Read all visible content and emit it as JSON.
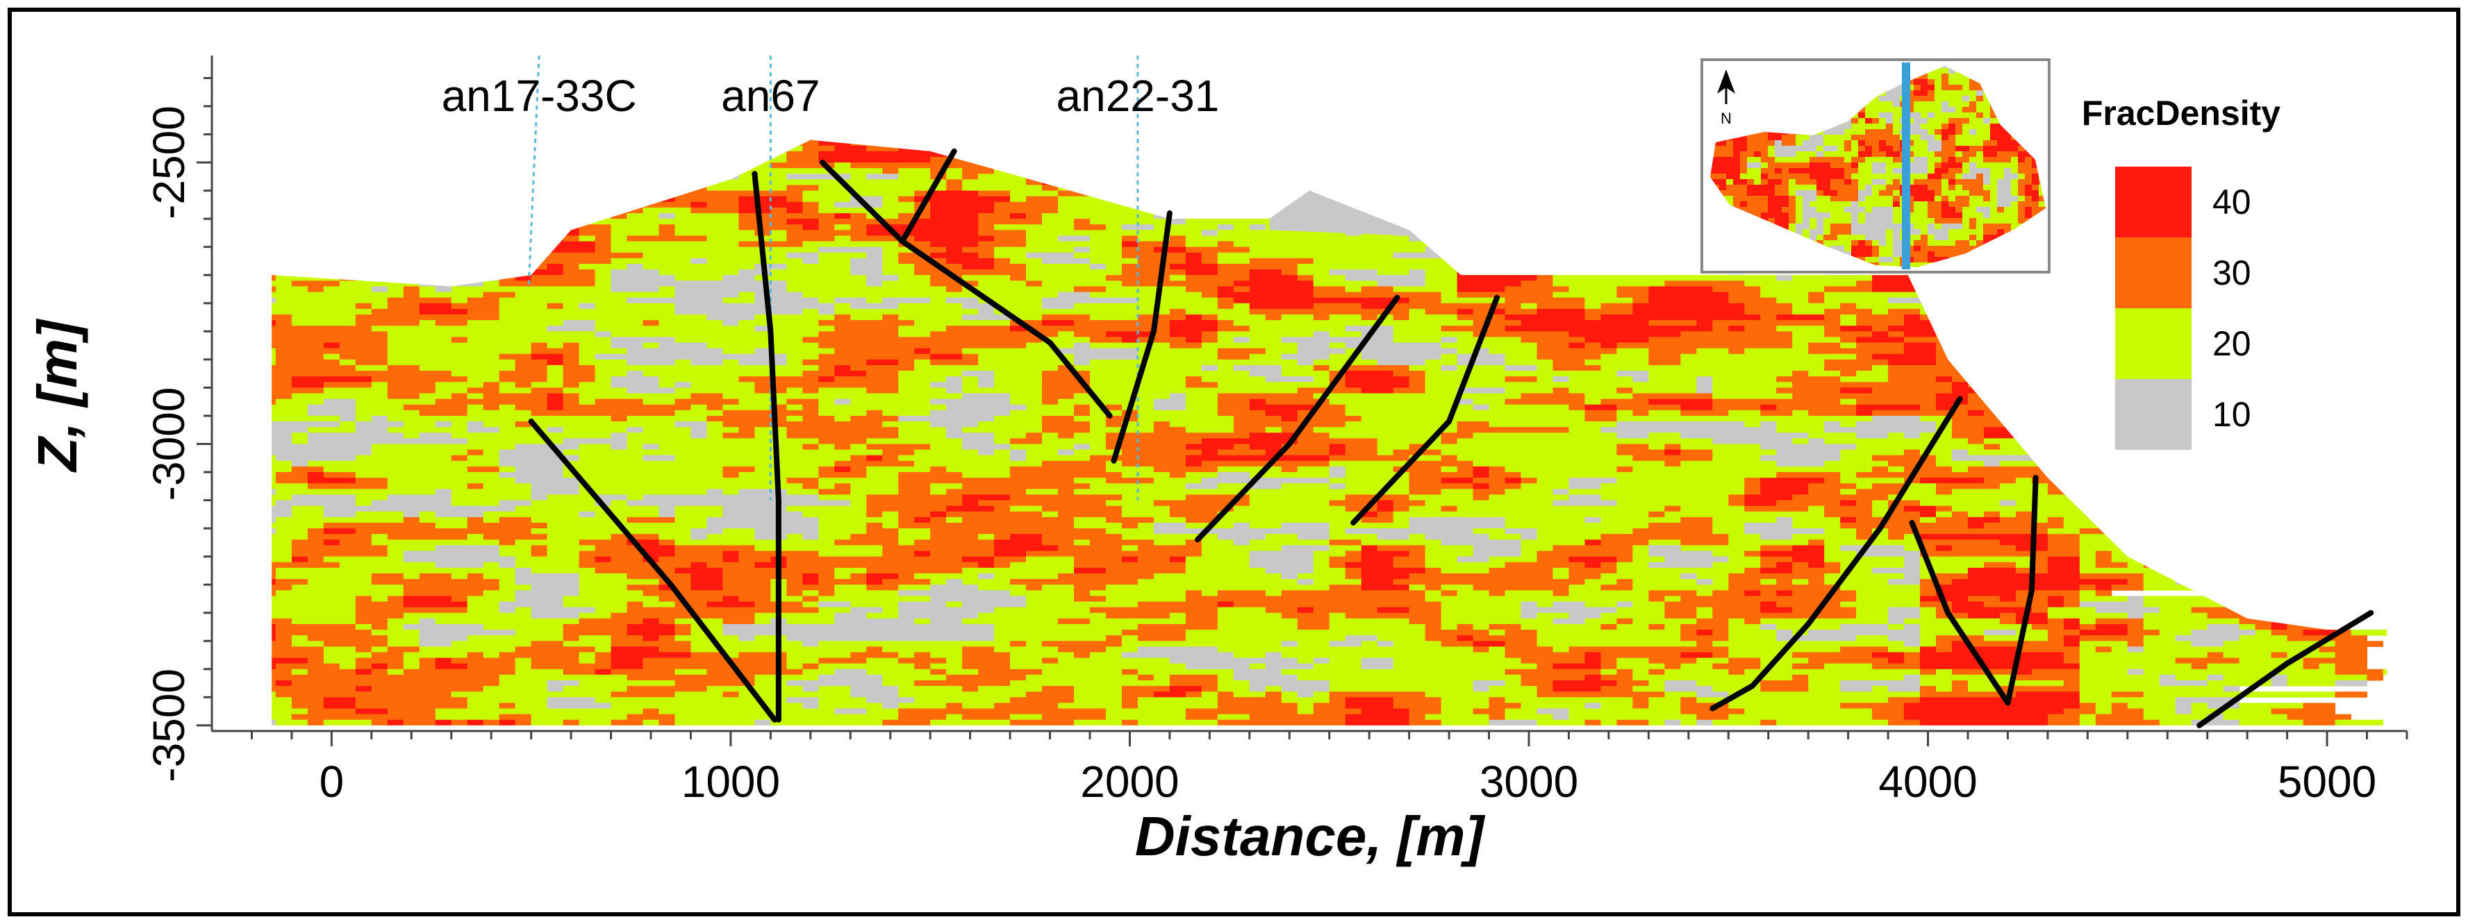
{
  "chart_data": {
    "type": "heatmap",
    "title": "",
    "xlabel": "Distance, [m]",
    "ylabel": "Z, [m]",
    "xlim": [
      -300,
      5200
    ],
    "ylim": [
      -3510,
      -2310
    ],
    "x_ticks": [
      0,
      1000,
      2000,
      3000,
      4000,
      5000
    ],
    "x_tick_labels": [
      "0",
      "1000",
      "2000",
      "3000",
      "4000",
      "5000"
    ],
    "x_minor_step": 100,
    "y_ticks": [
      -2500,
      -3000,
      -3500
    ],
    "y_tick_labels": [
      "-2500",
      "-3000",
      "-3500"
    ],
    "y_minor_step": 50,
    "grid": false,
    "legend": {
      "title": "FracDensity",
      "position": "top-right",
      "entries": [
        {
          "label": "40",
          "color": "#ff1a0d"
        },
        {
          "label": "30",
          "color": "#ff6a08"
        },
        {
          "label": "20",
          "color": "#c8fa00"
        },
        {
          "label": "10",
          "color": "#c8c8c8"
        }
      ]
    },
    "surface_profile": {
      "x": [
        -150,
        300,
        500,
        600,
        1000,
        1200,
        1500,
        1800,
        2100,
        2350,
        2450,
        2700,
        2830,
        3100,
        3950,
        4050,
        4300,
        4500,
        4800,
        5000,
        5150
      ],
      "z": [
        -2700,
        -2720,
        -2700,
        -2620,
        -2530,
        -2460,
        -2480,
        -2540,
        -2600,
        -2600,
        -2550,
        -2620,
        -2700,
        -2700,
        -2700,
        -2850,
        -3060,
        -3200,
        -3310,
        -3330,
        -3330
      ]
    },
    "wells": [
      {
        "name": "an17-33C",
        "x": 520
      },
      {
        "name": "an67",
        "x": 1100
      },
      {
        "name": "an22-31",
        "x": 2020
      }
    ],
    "faults": [
      {
        "x": [
          500,
          850,
          1110
        ],
        "z": [
          -2960,
          -3250,
          -3490
        ]
      },
      {
        "x": [
          1060,
          1100,
          1120,
          1120
        ],
        "z": [
          -2520,
          -2800,
          -3100,
          -3490
        ]
      },
      {
        "x": [
          1230,
          1430,
          1800,
          1950
        ],
        "z": [
          -2500,
          -2640,
          -2820,
          -2950
        ]
      },
      {
        "x": [
          1430,
          1560
        ],
        "z": [
          -2640,
          -2480
        ]
      },
      {
        "x": [
          1960,
          2060,
          2100
        ],
        "z": [
          -3030,
          -2800,
          -2590
        ]
      },
      {
        "x": [
          2170,
          2400,
          2670
        ],
        "z": [
          -3170,
          -3000,
          -2740
        ]
      },
      {
        "x": [
          2560,
          2800,
          2920
        ],
        "z": [
          -3140,
          -2960,
          -2740
        ]
      },
      {
        "x": [
          3460,
          3560,
          3700,
          3880,
          4080
        ],
        "z": [
          -3470,
          -3430,
          -3320,
          -3150,
          -2920
        ]
      },
      {
        "x": [
          3960,
          4050,
          4200
        ],
        "z": [
          -3140,
          -3300,
          -3460
        ]
      },
      {
        "x": [
          4200,
          4260,
          4270
        ],
        "z": [
          -3460,
          -3260,
          -3060
        ]
      },
      {
        "x": [
          4680,
          4900,
          5110
        ],
        "z": [
          -3500,
          -3390,
          -3300
        ]
      }
    ],
    "inset_map": {
      "description_label": "N",
      "colors": [
        "#ff1a0d",
        "#ff6a08",
        "#c8fa00",
        "#c8c8c8"
      ],
      "section_line_color": "#3aa0d8"
    }
  }
}
